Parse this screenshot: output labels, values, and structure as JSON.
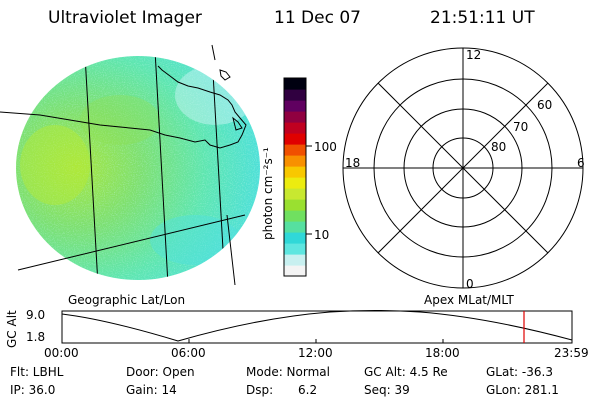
{
  "header": {
    "instrument": "Ultraviolet Imager",
    "date": "11 Dec 07",
    "time": "21:51:11 UT"
  },
  "colorbar": {
    "unit_label": "photon cm⁻²s⁻¹",
    "ticks": [
      "100",
      "10"
    ],
    "scale": "log",
    "colors": [
      "#f4f4f4",
      "#c8f0f0",
      "#5ee6e0",
      "#30d8d8",
      "#56e0a0",
      "#70e060",
      "#9ae030",
      "#c8e830",
      "#ecec10",
      "#f8c800",
      "#f89000",
      "#f05000",
      "#e00000",
      "#c00020",
      "#900040",
      "#600060",
      "#300040",
      "#000010"
    ]
  },
  "polar_plot": {
    "mlt_labels": [
      "12",
      "18",
      "6",
      "0"
    ],
    "lat_labels": [
      "60",
      "70",
      "80"
    ]
  },
  "image_panel": {
    "label": "Geographic Lat/Lon",
    "dominant_color": "#5ee6c0"
  },
  "apex_label": "Apex MLat/MLT",
  "altitude_plot": {
    "ylabel": "GC Alt",
    "y_ticks": [
      "9.0",
      "1.8"
    ],
    "x_ticks": [
      "00:00",
      "06:00",
      "12:00",
      "18:00",
      "23:59"
    ],
    "current_marker_color": "#e00000"
  },
  "info": {
    "row1": {
      "flt": "Flt: LBHL",
      "door": "Door: Open",
      "mode": "Mode: Normal",
      "gcalt": "GC Alt: 4.5 Re",
      "glat": "GLat: -36.3"
    },
    "row2": {
      "ip": "IP: 36.0",
      "gain": "Gain: 14",
      "dsp_label": "Dsp:",
      "dsp_value": "6.2",
      "seq": "Seq: 39",
      "glon": "GLon: 281.1"
    }
  }
}
